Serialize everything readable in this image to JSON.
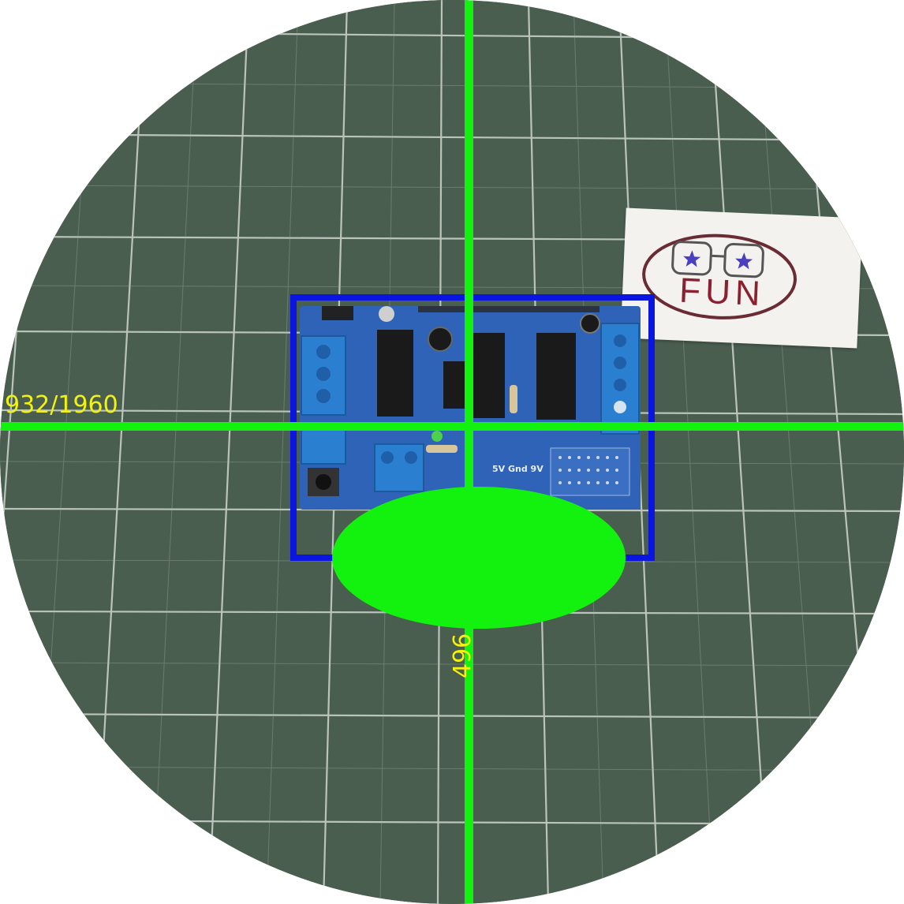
{
  "camera_view": {
    "x_readout": "932/1960",
    "y_readout": "496"
  },
  "sticker": {
    "text": "FUN"
  },
  "board": {
    "silk_label": "5V Gnd 9V"
  },
  "colors": {
    "crosshair": "#13f20f",
    "bbox": "#0a16e0",
    "readout_text": "#f3f20c",
    "mat": "#4a5e4f"
  }
}
